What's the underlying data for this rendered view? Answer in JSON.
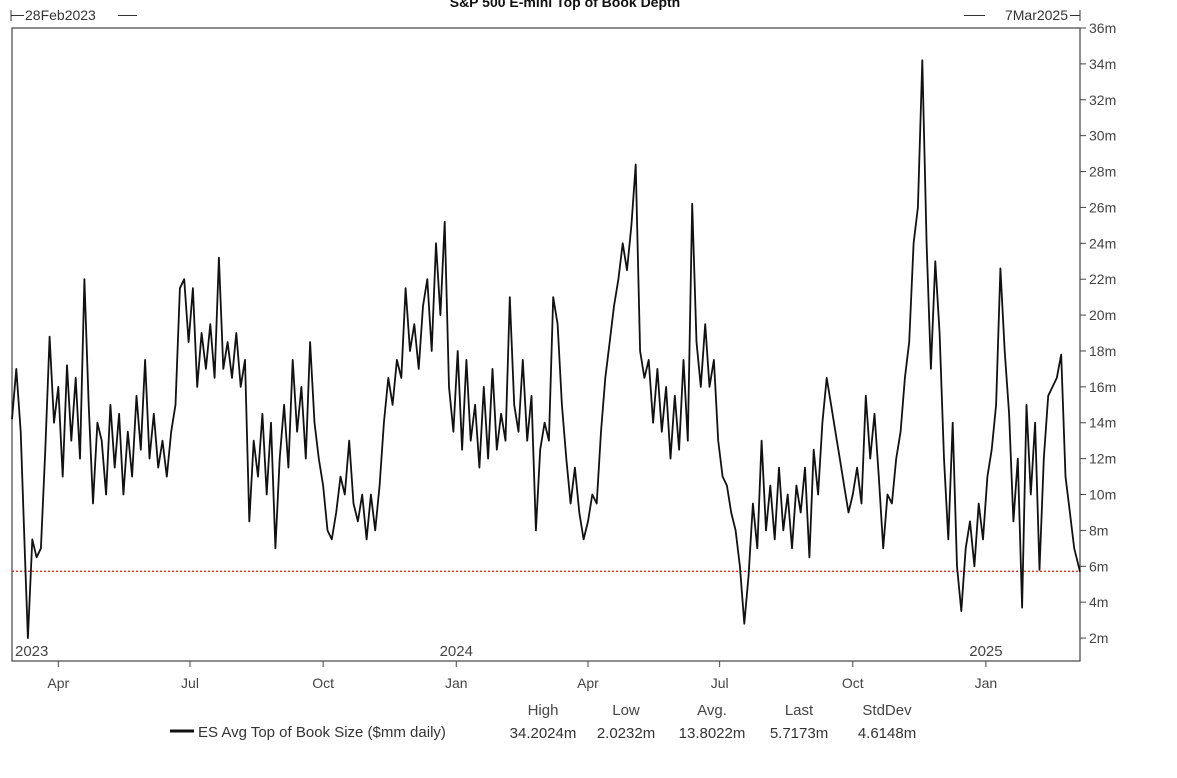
{
  "chart_data": {
    "type": "line",
    "title": "S&P 500 E-mini Top of Book Depth",
    "range_start_label": "28Feb2023",
    "range_end_label": "7Mar2025",
    "x_start": "2023-02-28",
    "x_end": "2025-03-07",
    "ylim": [
      1,
      36
    ],
    "yticks": [
      2,
      4,
      6,
      8,
      10,
      12,
      14,
      16,
      18,
      20,
      22,
      24,
      26,
      28,
      30,
      32,
      34,
      36
    ],
    "ytick_labels": [
      "2m",
      "4m",
      "6m",
      "8m",
      "10m",
      "12m",
      "14m",
      "16m",
      "18m",
      "20m",
      "22m",
      "24m",
      "26m",
      "28m",
      "30m",
      "32m",
      "34m",
      "36m"
    ],
    "xticks": [
      {
        "date": "2023-04-01",
        "label": "Apr"
      },
      {
        "date": "2023-07-01",
        "label": "Jul"
      },
      {
        "date": "2023-10-01",
        "label": "Oct"
      },
      {
        "date": "2024-01-01",
        "label": "Jan"
      },
      {
        "date": "2024-04-01",
        "label": "Apr"
      },
      {
        "date": "2024-07-01",
        "label": "Jul"
      },
      {
        "date": "2024-10-01",
        "label": "Oct"
      },
      {
        "date": "2025-01-01",
        "label": "Jan"
      }
    ],
    "year_labels": [
      {
        "date": "2023-02-28",
        "label": "2023"
      },
      {
        "date": "2024-01-01",
        "label": "2024"
      },
      {
        "date": "2025-01-01",
        "label": "2025"
      }
    ],
    "reference_line": {
      "value": 5.7173,
      "color": "#e0302a",
      "style": "dotted"
    },
    "grid": false,
    "series": [
      {
        "name": "ES Avg Top of Book Size ($mm daily)",
        "color": "#111111",
        "points": [
          [
            "2023-02-28",
            14.2
          ],
          [
            "2023-03-03",
            17.0
          ],
          [
            "2023-03-06",
            13.5
          ],
          [
            "2023-03-09",
            6.5
          ],
          [
            "2023-03-11",
            2.0
          ],
          [
            "2023-03-14",
            7.5
          ],
          [
            "2023-03-17",
            6.5
          ],
          [
            "2023-03-20",
            7.0
          ],
          [
            "2023-03-23",
            12.5
          ],
          [
            "2023-03-26",
            18.8
          ],
          [
            "2023-03-29",
            14.0
          ],
          [
            "2023-04-01",
            16.0
          ],
          [
            "2023-04-04",
            11.0
          ],
          [
            "2023-04-07",
            17.2
          ],
          [
            "2023-04-10",
            13.0
          ],
          [
            "2023-04-13",
            16.5
          ],
          [
            "2023-04-16",
            12.0
          ],
          [
            "2023-04-19",
            22.0
          ],
          [
            "2023-04-22",
            15.0
          ],
          [
            "2023-04-25",
            9.5
          ],
          [
            "2023-04-28",
            14.0
          ],
          [
            "2023-05-01",
            13.0
          ],
          [
            "2023-05-04",
            10.0
          ],
          [
            "2023-05-07",
            15.0
          ],
          [
            "2023-05-10",
            11.5
          ],
          [
            "2023-05-13",
            14.5
          ],
          [
            "2023-05-16",
            10.0
          ],
          [
            "2023-05-19",
            13.5
          ],
          [
            "2023-05-22",
            11.0
          ],
          [
            "2023-05-25",
            15.5
          ],
          [
            "2023-05-28",
            12.5
          ],
          [
            "2023-05-31",
            17.5
          ],
          [
            "2023-06-03",
            12.0
          ],
          [
            "2023-06-06",
            14.5
          ],
          [
            "2023-06-09",
            11.5
          ],
          [
            "2023-06-12",
            13.0
          ],
          [
            "2023-06-15",
            11.0
          ],
          [
            "2023-06-18",
            13.5
          ],
          [
            "2023-06-21",
            15.0
          ],
          [
            "2023-06-24",
            21.5
          ],
          [
            "2023-06-27",
            22.0
          ],
          [
            "2023-06-30",
            18.5
          ],
          [
            "2023-07-03",
            21.5
          ],
          [
            "2023-07-06",
            16.0
          ],
          [
            "2023-07-09",
            19.0
          ],
          [
            "2023-07-12",
            17.0
          ],
          [
            "2023-07-15",
            19.5
          ],
          [
            "2023-07-18",
            16.5
          ],
          [
            "2023-07-21",
            23.2
          ],
          [
            "2023-07-24",
            17.0
          ],
          [
            "2023-07-27",
            18.5
          ],
          [
            "2023-07-30",
            16.5
          ],
          [
            "2023-08-02",
            19.0
          ],
          [
            "2023-08-05",
            16.0
          ],
          [
            "2023-08-08",
            17.5
          ],
          [
            "2023-08-11",
            8.5
          ],
          [
            "2023-08-14",
            13.0
          ],
          [
            "2023-08-17",
            11.0
          ],
          [
            "2023-08-20",
            14.5
          ],
          [
            "2023-08-23",
            10.0
          ],
          [
            "2023-08-26",
            14.0
          ],
          [
            "2023-08-29",
            7.0
          ],
          [
            "2023-09-01",
            12.0
          ],
          [
            "2023-09-04",
            15.0
          ],
          [
            "2023-09-07",
            11.5
          ],
          [
            "2023-09-10",
            17.5
          ],
          [
            "2023-09-13",
            13.5
          ],
          [
            "2023-09-16",
            16.0
          ],
          [
            "2023-09-19",
            12.0
          ],
          [
            "2023-09-22",
            18.5
          ],
          [
            "2023-09-25",
            14.0
          ],
          [
            "2023-09-28",
            12.0
          ],
          [
            "2023-10-01",
            10.5
          ],
          [
            "2023-10-04",
            8.0
          ],
          [
            "2023-10-07",
            7.5
          ],
          [
            "2023-10-10",
            9.0
          ],
          [
            "2023-10-13",
            11.0
          ],
          [
            "2023-10-16",
            10.0
          ],
          [
            "2023-10-19",
            13.0
          ],
          [
            "2023-10-22",
            9.5
          ],
          [
            "2023-10-25",
            8.5
          ],
          [
            "2023-10-28",
            10.0
          ],
          [
            "2023-10-31",
            7.5
          ],
          [
            "2023-11-03",
            10.0
          ],
          [
            "2023-11-06",
            8.0
          ],
          [
            "2023-11-09",
            10.5
          ],
          [
            "2023-11-12",
            14.0
          ],
          [
            "2023-11-15",
            16.5
          ],
          [
            "2023-11-18",
            15.0
          ],
          [
            "2023-11-21",
            17.5
          ],
          [
            "2023-11-24",
            16.5
          ],
          [
            "2023-11-27",
            21.5
          ],
          [
            "2023-11-30",
            18.0
          ],
          [
            "2023-12-03",
            19.5
          ],
          [
            "2023-12-06",
            17.0
          ],
          [
            "2023-12-09",
            20.5
          ],
          [
            "2023-12-12",
            22.0
          ],
          [
            "2023-12-15",
            18.0
          ],
          [
            "2023-12-18",
            24.0
          ],
          [
            "2023-12-21",
            20.0
          ],
          [
            "2023-12-24",
            25.2
          ],
          [
            "2023-12-27",
            16.0
          ],
          [
            "2023-12-30",
            13.5
          ],
          [
            "2024-01-02",
            18.0
          ],
          [
            "2024-01-05",
            12.5
          ],
          [
            "2024-01-08",
            17.5
          ],
          [
            "2024-01-11",
            13.0
          ],
          [
            "2024-01-14",
            15.0
          ],
          [
            "2024-01-17",
            11.5
          ],
          [
            "2024-01-20",
            16.0
          ],
          [
            "2024-01-23",
            12.0
          ],
          [
            "2024-01-26",
            17.0
          ],
          [
            "2024-01-29",
            12.5
          ],
          [
            "2024-02-01",
            14.5
          ],
          [
            "2024-02-04",
            13.0
          ],
          [
            "2024-02-07",
            21.0
          ],
          [
            "2024-02-10",
            15.0
          ],
          [
            "2024-02-13",
            13.5
          ],
          [
            "2024-02-16",
            17.5
          ],
          [
            "2024-02-19",
            13.0
          ],
          [
            "2024-02-22",
            15.5
          ],
          [
            "2024-02-25",
            8.0
          ],
          [
            "2024-02-28",
            12.5
          ],
          [
            "2024-03-02",
            14.0
          ],
          [
            "2024-03-05",
            13.0
          ],
          [
            "2024-03-08",
            21.0
          ],
          [
            "2024-03-11",
            19.5
          ],
          [
            "2024-03-14",
            15.0
          ],
          [
            "2024-03-17",
            12.0
          ],
          [
            "2024-03-20",
            9.5
          ],
          [
            "2024-03-23",
            11.5
          ],
          [
            "2024-03-26",
            9.0
          ],
          [
            "2024-03-29",
            7.5
          ],
          [
            "2024-04-01",
            8.5
          ],
          [
            "2024-04-04",
            10.0
          ],
          [
            "2024-04-07",
            9.5
          ],
          [
            "2024-04-10",
            13.5
          ],
          [
            "2024-04-13",
            16.5
          ],
          [
            "2024-04-16",
            18.5
          ],
          [
            "2024-04-19",
            20.5
          ],
          [
            "2024-04-22",
            22.0
          ],
          [
            "2024-04-25",
            24.0
          ],
          [
            "2024-04-28",
            22.5
          ],
          [
            "2024-05-01",
            25.0
          ],
          [
            "2024-05-04",
            28.4
          ],
          [
            "2024-05-07",
            18.0
          ],
          [
            "2024-05-10",
            16.5
          ],
          [
            "2024-05-13",
            17.5
          ],
          [
            "2024-05-16",
            14.0
          ],
          [
            "2024-05-19",
            17.0
          ],
          [
            "2024-05-22",
            13.5
          ],
          [
            "2024-05-25",
            16.0
          ],
          [
            "2024-05-28",
            12.0
          ],
          [
            "2024-05-31",
            15.5
          ],
          [
            "2024-06-03",
            12.5
          ],
          [
            "2024-06-06",
            17.5
          ],
          [
            "2024-06-09",
            13.0
          ],
          [
            "2024-06-12",
            26.2
          ],
          [
            "2024-06-15",
            18.5
          ],
          [
            "2024-06-18",
            16.0
          ],
          [
            "2024-06-21",
            19.5
          ],
          [
            "2024-06-24",
            16.0
          ],
          [
            "2024-06-27",
            17.5
          ],
          [
            "2024-06-30",
            13.0
          ],
          [
            "2024-07-03",
            11.0
          ],
          [
            "2024-07-06",
            10.5
          ],
          [
            "2024-07-09",
            9.0
          ],
          [
            "2024-07-12",
            8.0
          ],
          [
            "2024-07-15",
            6.0
          ],
          [
            "2024-07-18",
            2.8
          ],
          [
            "2024-07-21",
            5.5
          ],
          [
            "2024-07-24",
            9.5
          ],
          [
            "2024-07-27",
            7.0
          ],
          [
            "2024-07-30",
            13.0
          ],
          [
            "2024-08-02",
            8.0
          ],
          [
            "2024-08-05",
            10.5
          ],
          [
            "2024-08-08",
            7.5
          ],
          [
            "2024-08-11",
            11.5
          ],
          [
            "2024-08-14",
            8.0
          ],
          [
            "2024-08-17",
            10.0
          ],
          [
            "2024-08-20",
            7.0
          ],
          [
            "2024-08-23",
            10.5
          ],
          [
            "2024-08-26",
            9.0
          ],
          [
            "2024-08-29",
            11.5
          ],
          [
            "2024-09-01",
            6.5
          ],
          [
            "2024-09-04",
            12.5
          ],
          [
            "2024-09-07",
            10.0
          ],
          [
            "2024-09-10",
            14.0
          ],
          [
            "2024-09-13",
            16.5
          ],
          [
            "2024-09-16",
            15.0
          ],
          [
            "2024-09-19",
            13.5
          ],
          [
            "2024-09-22",
            12.0
          ],
          [
            "2024-09-25",
            10.5
          ],
          [
            "2024-09-28",
            9.0
          ],
          [
            "2024-10-01",
            10.0
          ],
          [
            "2024-10-04",
            11.5
          ],
          [
            "2024-10-07",
            9.5
          ],
          [
            "2024-10-10",
            15.5
          ],
          [
            "2024-10-13",
            12.0
          ],
          [
            "2024-10-16",
            14.5
          ],
          [
            "2024-10-19",
            11.0
          ],
          [
            "2024-10-22",
            7.0
          ],
          [
            "2024-10-25",
            10.0
          ],
          [
            "2024-10-28",
            9.5
          ],
          [
            "2024-10-31",
            12.0
          ],
          [
            "2024-11-03",
            13.5
          ],
          [
            "2024-11-06",
            16.5
          ],
          [
            "2024-11-09",
            18.5
          ],
          [
            "2024-11-12",
            24.0
          ],
          [
            "2024-11-15",
            26.0
          ],
          [
            "2024-11-18",
            34.2
          ],
          [
            "2024-11-21",
            24.0
          ],
          [
            "2024-11-24",
            17.0
          ],
          [
            "2024-11-27",
            23.0
          ],
          [
            "2024-11-30",
            19.0
          ],
          [
            "2024-12-03",
            12.0
          ],
          [
            "2024-12-06",
            7.5
          ],
          [
            "2024-12-09",
            14.0
          ],
          [
            "2024-12-12",
            6.0
          ],
          [
            "2024-12-15",
            3.5
          ],
          [
            "2024-12-18",
            7.0
          ],
          [
            "2024-12-21",
            8.5
          ],
          [
            "2024-12-24",
            6.0
          ],
          [
            "2024-12-27",
            9.5
          ],
          [
            "2024-12-30",
            7.5
          ],
          [
            "2025-01-02",
            11.0
          ],
          [
            "2025-01-05",
            12.5
          ],
          [
            "2025-01-08",
            15.0
          ],
          [
            "2025-01-11",
            22.6
          ],
          [
            "2025-01-14",
            18.0
          ],
          [
            "2025-01-17",
            14.5
          ],
          [
            "2025-01-20",
            8.5
          ],
          [
            "2025-01-23",
            12.0
          ],
          [
            "2025-01-26",
            3.7
          ],
          [
            "2025-01-29",
            15.0
          ],
          [
            "2025-02-01",
            10.0
          ],
          [
            "2025-02-04",
            14.0
          ],
          [
            "2025-02-07",
            5.8
          ],
          [
            "2025-02-10",
            12.0
          ],
          [
            "2025-02-13",
            15.5
          ],
          [
            "2025-02-16",
            16.0
          ],
          [
            "2025-02-19",
            16.5
          ],
          [
            "2025-02-22",
            17.8
          ],
          [
            "2025-02-25",
            11.0
          ],
          [
            "2025-02-28",
            9.0
          ],
          [
            "2025-03-03",
            7.0
          ],
          [
            "2025-03-07",
            5.7
          ]
        ]
      }
    ],
    "legend_label": "ES Avg Top of Book Size ($mm daily)",
    "stats": [
      {
        "label": "High",
        "value": "34.2024m"
      },
      {
        "label": "Low",
        "value": "2.0232m"
      },
      {
        "label": "Avg.",
        "value": "13.8022m"
      },
      {
        "label": "Last",
        "value": "5.7173m"
      },
      {
        "label": "StdDev",
        "value": "4.6148m"
      }
    ]
  }
}
